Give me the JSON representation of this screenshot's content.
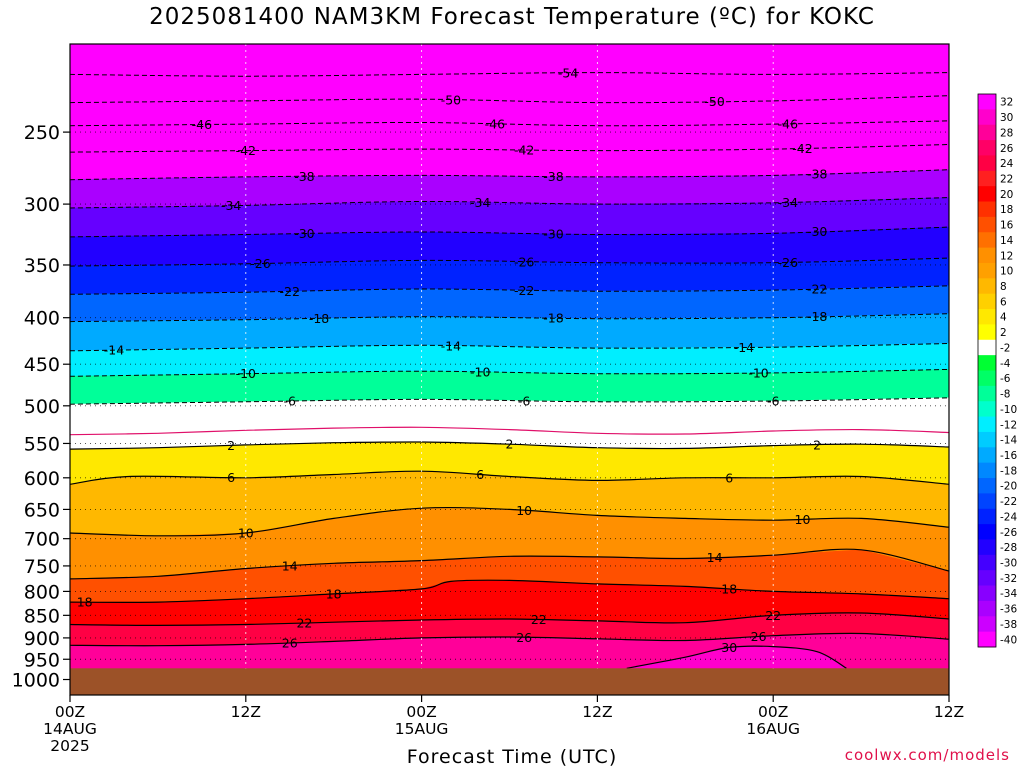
{
  "chart_data": {
    "type": "heatmap",
    "title": "2025081400 NAM3KM Forecast Temperature (ºC) for KOKC",
    "xlabel": "Forecast Time (UTC)",
    "ylabel": "",
    "credit": "coolwx.com/models",
    "y_axis": {
      "scale": "pressure",
      "ticks": [
        "250",
        "300",
        "350",
        "400",
        "450",
        "500",
        "550",
        "600",
        "650",
        "700",
        "750",
        "800",
        "850",
        "900",
        "950",
        "1000"
      ],
      "ylim": [
        200,
        1040
      ]
    },
    "x_axis": {
      "ticks": [
        {
          "hour": 0,
          "lines": [
            "00Z",
            "14AUG",
            "2025"
          ]
        },
        {
          "hour": 12,
          "lines": [
            "12Z"
          ]
        },
        {
          "hour": 24,
          "lines": [
            "00Z",
            "15AUG"
          ]
        },
        {
          "hour": 36,
          "lines": [
            "12Z"
          ]
        },
        {
          "hour": 48,
          "lines": [
            "00Z",
            "16AUG"
          ]
        },
        {
          "hour": 60,
          "lines": [
            "12Z"
          ]
        }
      ],
      "xlim": [
        0,
        60
      ]
    },
    "surface_pressure": 972,
    "colorbar_labels": [
      "32",
      "30",
      "28",
      "26",
      "24",
      "22",
      "20",
      "18",
      "16",
      "14",
      "12",
      "10",
      "8",
      "6",
      "4",
      "2",
      "-2",
      "-4",
      "-6",
      "-8",
      "-10",
      "-12",
      "-14",
      "-16",
      "-18",
      "-20",
      "-22",
      "-24",
      "-26",
      "-28",
      "-30",
      "-32",
      "-34",
      "-36",
      "-38",
      "-40"
    ],
    "color_scale": [
      "#ff00ff",
      "#ff00cc",
      "#ff0099",
      "#ff0066",
      "#ff0044",
      "#ff2020",
      "#ff0000",
      "#ff3000",
      "#ff5000",
      "#ff7000",
      "#ff9000",
      "#ffa000",
      "#ffb800",
      "#ffd000",
      "#ffe800",
      "#ffff00",
      "#ffffff",
      "#00ff33",
      "#00ff66",
      "#00ff99",
      "#00ffcc",
      "#00eeff",
      "#00ccff",
      "#00aaff",
      "#0088ff",
      "#0066ff",
      "#0044ff",
      "#0022ff",
      "#0000ff",
      "#2200ff",
      "#4400ff",
      "#6600ff",
      "#8800ff",
      "#aa00ff",
      "#cc00ff",
      "#ff00ff"
    ],
    "isotherms": [
      {
        "value": -54,
        "points": [
          [
            0,
            216
          ],
          [
            12,
            217
          ],
          [
            24,
            216
          ],
          [
            36,
            215
          ],
          [
            48,
            216
          ],
          [
            60,
            215
          ]
        ],
        "labels": [
          {
            "hour": 34,
            "text": "-54"
          }
        ]
      },
      {
        "value": -50,
        "points": [
          [
            0,
            232
          ],
          [
            12,
            231
          ],
          [
            24,
            230
          ],
          [
            36,
            232
          ],
          [
            48,
            231
          ],
          [
            60,
            228
          ]
        ],
        "labels": [
          {
            "hour": 26,
            "text": "-50"
          },
          {
            "hour": 44,
            "text": "-50"
          }
        ]
      },
      {
        "value": -46,
        "points": [
          [
            0,
            246
          ],
          [
            12,
            245
          ],
          [
            24,
            244
          ],
          [
            36,
            246
          ],
          [
            48,
            245
          ],
          [
            60,
            243
          ]
        ],
        "labels": [
          {
            "hour": 9,
            "text": "-46"
          },
          {
            "hour": 29,
            "text": "-46"
          },
          {
            "hour": 49,
            "text": "-46"
          }
        ]
      },
      {
        "value": -42,
        "points": [
          [
            0,
            263
          ],
          [
            12,
            262
          ],
          [
            24,
            261
          ],
          [
            36,
            262
          ],
          [
            48,
            261
          ],
          [
            60,
            258
          ]
        ],
        "labels": [
          {
            "hour": 12,
            "text": "-42"
          },
          {
            "hour": 31,
            "text": "-42"
          },
          {
            "hour": 50,
            "text": "-42"
          }
        ]
      },
      {
        "value": -38,
        "points": [
          [
            0,
            282
          ],
          [
            12,
            280
          ],
          [
            24,
            279
          ],
          [
            36,
            280
          ],
          [
            48,
            279
          ],
          [
            60,
            275
          ]
        ],
        "labels": [
          {
            "hour": 16,
            "text": "-38"
          },
          {
            "hour": 33,
            "text": "-38"
          },
          {
            "hour": 51,
            "text": "-38"
          }
        ]
      },
      {
        "value": -34,
        "points": [
          [
            0,
            303
          ],
          [
            12,
            301
          ],
          [
            24,
            298
          ],
          [
            36,
            300
          ],
          [
            48,
            299
          ],
          [
            60,
            295
          ]
        ],
        "labels": [
          {
            "hour": 11,
            "text": "-34"
          },
          {
            "hour": 28,
            "text": "-34"
          },
          {
            "hour": 49,
            "text": "-34"
          }
        ]
      },
      {
        "value": -30,
        "points": [
          [
            0,
            326
          ],
          [
            12,
            324
          ],
          [
            24,
            322
          ],
          [
            36,
            324
          ],
          [
            48,
            323
          ],
          [
            60,
            318
          ]
        ],
        "labels": [
          {
            "hour": 16,
            "text": "-30"
          },
          {
            "hour": 33,
            "text": "-30"
          },
          {
            "hour": 51,
            "text": "-30"
          }
        ]
      },
      {
        "value": -26,
        "points": [
          [
            0,
            351
          ],
          [
            12,
            349
          ],
          [
            24,
            346
          ],
          [
            36,
            348
          ],
          [
            48,
            348
          ],
          [
            60,
            344
          ]
        ],
        "labels": [
          {
            "hour": 13,
            "text": "-26"
          },
          {
            "hour": 31,
            "text": "-26"
          },
          {
            "hour": 49,
            "text": "-26"
          }
        ]
      },
      {
        "value": -22,
        "points": [
          [
            0,
            377
          ],
          [
            12,
            375
          ],
          [
            24,
            372
          ],
          [
            36,
            374
          ],
          [
            48,
            373
          ],
          [
            60,
            369
          ]
        ],
        "labels": [
          {
            "hour": 15,
            "text": "-22"
          },
          {
            "hour": 31,
            "text": "-22"
          },
          {
            "hour": 51,
            "text": "-22"
          }
        ]
      },
      {
        "value": -18,
        "points": [
          [
            0,
            404
          ],
          [
            12,
            402
          ],
          [
            24,
            399
          ],
          [
            36,
            401
          ],
          [
            48,
            400
          ],
          [
            60,
            396
          ]
        ],
        "labels": [
          {
            "hour": 17,
            "text": "-18"
          },
          {
            "hour": 33,
            "text": "-18"
          },
          {
            "hour": 51,
            "text": "-18"
          }
        ]
      },
      {
        "value": -14,
        "points": [
          [
            0,
            435
          ],
          [
            12,
            432
          ],
          [
            24,
            429
          ],
          [
            36,
            432
          ],
          [
            48,
            431
          ],
          [
            60,
            427
          ]
        ],
        "labels": [
          {
            "hour": 3,
            "text": "-14"
          },
          {
            "hour": 26,
            "text": "-14"
          },
          {
            "hour": 46,
            "text": "-14"
          }
        ]
      },
      {
        "value": -10,
        "points": [
          [
            0,
            464
          ],
          [
            12,
            461
          ],
          [
            24,
            458
          ],
          [
            36,
            461
          ],
          [
            48,
            460
          ],
          [
            60,
            456
          ]
        ],
        "labels": [
          {
            "hour": 12,
            "text": "-10"
          },
          {
            "hour": 28,
            "text": "-10"
          },
          {
            "hour": 47,
            "text": "-10"
          }
        ]
      },
      {
        "value": -6,
        "points": [
          [
            0,
            498
          ],
          [
            12,
            495
          ],
          [
            24,
            492
          ],
          [
            36,
            495
          ],
          [
            48,
            494
          ],
          [
            60,
            490
          ]
        ],
        "labels": [
          {
            "hour": 15,
            "text": "-6"
          },
          {
            "hour": 31,
            "text": "-6"
          },
          {
            "hour": 48,
            "text": "-6"
          }
        ]
      },
      {
        "value": 2,
        "points": [
          [
            0,
            558
          ],
          [
            6,
            556
          ],
          [
            12,
            552
          ],
          [
            18,
            549
          ],
          [
            24,
            548
          ],
          [
            30,
            551
          ],
          [
            36,
            556
          ],
          [
            42,
            557
          ],
          [
            48,
            553
          ],
          [
            54,
            551
          ],
          [
            60,
            555
          ]
        ],
        "labels": [
          {
            "hour": 11,
            "text": "2"
          },
          {
            "hour": 30,
            "text": "2"
          },
          {
            "hour": 51,
            "text": "2"
          }
        ]
      },
      {
        "value": 6,
        "points": [
          [
            0,
            610
          ],
          [
            4,
            598
          ],
          [
            12,
            600
          ],
          [
            18,
            595
          ],
          [
            24,
            590
          ],
          [
            30,
            598
          ],
          [
            36,
            604
          ],
          [
            42,
            600
          ],
          [
            48,
            600
          ],
          [
            54,
            598
          ],
          [
            60,
            610
          ]
        ],
        "labels": [
          {
            "hour": 11,
            "text": "6"
          },
          {
            "hour": 28,
            "text": "6"
          },
          {
            "hour": 45,
            "text": "6"
          }
        ]
      },
      {
        "value": 10,
        "points": [
          [
            0,
            690
          ],
          [
            6,
            695
          ],
          [
            12,
            690
          ],
          [
            18,
            665
          ],
          [
            24,
            648
          ],
          [
            30,
            650
          ],
          [
            36,
            660
          ],
          [
            42,
            665
          ],
          [
            48,
            668
          ],
          [
            54,
            665
          ],
          [
            60,
            680
          ]
        ],
        "labels": [
          {
            "hour": 12,
            "text": "10"
          },
          {
            "hour": 31,
            "text": "10"
          },
          {
            "hour": 50,
            "text": "10"
          }
        ]
      },
      {
        "value": 14,
        "points": [
          [
            0,
            775
          ],
          [
            6,
            770
          ],
          [
            12,
            755
          ],
          [
            18,
            745
          ],
          [
            24,
            740
          ],
          [
            30,
            732
          ],
          [
            36,
            733
          ],
          [
            42,
            736
          ],
          [
            48,
            730
          ],
          [
            54,
            720
          ],
          [
            60,
            760
          ]
        ],
        "labels": [
          {
            "hour": 15,
            "text": "14"
          },
          {
            "hour": 44,
            "text": "14"
          }
        ]
      },
      {
        "value": 18,
        "points": [
          [
            0,
            822
          ],
          [
            6,
            822
          ],
          [
            12,
            815
          ],
          [
            18,
            805
          ],
          [
            24,
            795
          ],
          [
            26,
            780
          ],
          [
            30,
            778
          ],
          [
            36,
            785
          ],
          [
            42,
            790
          ],
          [
            48,
            800
          ],
          [
            54,
            805
          ],
          [
            60,
            815
          ]
        ],
        "labels": [
          {
            "hour": 1,
            "text": "18"
          },
          {
            "hour": 18,
            "text": "18"
          },
          {
            "hour": 45,
            "text": "18"
          }
        ]
      },
      {
        "value": 22,
        "points": [
          [
            0,
            870
          ],
          [
            6,
            872
          ],
          [
            12,
            870
          ],
          [
            18,
            865
          ],
          [
            24,
            860
          ],
          [
            30,
            858
          ],
          [
            36,
            862
          ],
          [
            42,
            866
          ],
          [
            48,
            850
          ],
          [
            54,
            845
          ],
          [
            60,
            858
          ]
        ],
        "labels": [
          {
            "hour": 16,
            "text": "22"
          },
          {
            "hour": 32,
            "text": "22"
          },
          {
            "hour": 48,
            "text": "22"
          }
        ]
      },
      {
        "value": 26,
        "points": [
          [
            0,
            917
          ],
          [
            6,
            918
          ],
          [
            12,
            915
          ],
          [
            18,
            908
          ],
          [
            24,
            900
          ],
          [
            30,
            898
          ],
          [
            36,
            902
          ],
          [
            42,
            906
          ],
          [
            48,
            895
          ],
          [
            54,
            890
          ],
          [
            60,
            903
          ]
        ],
        "labels": [
          {
            "hour": 15,
            "text": "26"
          },
          {
            "hour": 31,
            "text": "26"
          },
          {
            "hour": 47,
            "text": "26"
          }
        ]
      },
      {
        "value": 30,
        "points": [
          [
            38,
            972
          ],
          [
            42,
            945
          ],
          [
            45,
            922
          ],
          [
            48,
            920
          ],
          [
            51,
            932
          ],
          [
            53,
            972
          ]
        ],
        "labels": [
          {
            "hour": 45,
            "text": "30"
          }
        ]
      }
    ]
  }
}
